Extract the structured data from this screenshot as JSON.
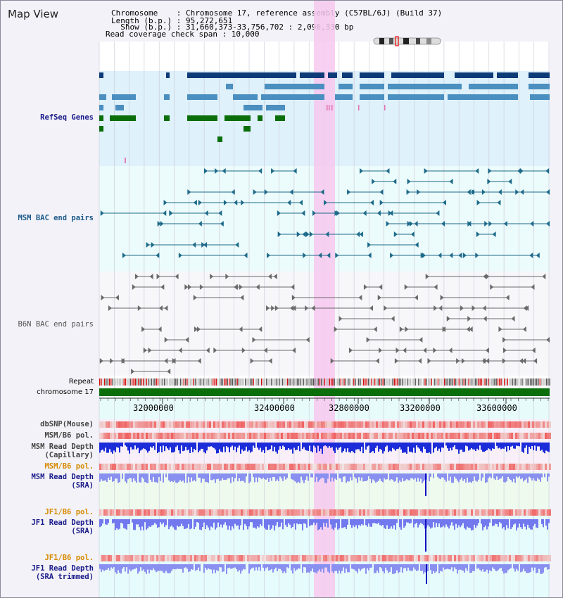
{
  "title": "Map View",
  "info": {
    "chromosome": "Chromosome    : Chromosome 17, reference assembly (C57BL/6J) (Build 37)",
    "length": "Length (b.p.) : 95,272,651",
    "show": "  Show (b.p.) : 31,660,373-33,756,702 : 2,096,330 bp",
    "coverage": "Read coverage check span : 10,000"
  },
  "tracks": {
    "refseq": "RefSeq Genes",
    "msm_bac": "MSM BAC end pairs",
    "b6n_bac": "B6N BAC end pairs",
    "repeat": "Repeat",
    "chromosome": "chromosome 17",
    "dbsnp": "dbSNP(Mouse)",
    "msm_b6_pol_1": "MSM/B6 pol.",
    "msm_depth_cap_1": "MSM Read Depth",
    "msm_depth_cap_2": "(Capillary)",
    "msm_b6_pol_2": "MSM/B6 pol.",
    "msm_depth_sra_1": "MSM Read Depth",
    "msm_depth_sra_2": "(SRA)",
    "jf1_b6_pol_1": "JF1/B6 pol.",
    "jf1_depth_sra_1": "JF1 Read Depth",
    "jf1_depth_sra_2": "(SRA)",
    "jf1_b6_pol_2": "JF1/B6 pol.",
    "jf1_depth_trim_1": "JF1 Read Depth",
    "jf1_depth_trim_2": "(SRA trimmed)"
  },
  "axis": {
    "ticks": [
      "32000000",
      "32400000",
      "32800000",
      "33200000",
      "33600000"
    ]
  },
  "colors": {
    "refseq_dark": "#0d3b78",
    "refseq_mid": "#4a8fc0",
    "refseq_green": "#0a6e0a",
    "bac_msm": "#1d6a8a",
    "bac_b6n": "#6a6a6a",
    "highlight": "#f7c8ee",
    "depth_blue": "#1c2cd8",
    "depth_light": "#8a90f0",
    "label_navy": "#1a1a8a",
    "label_orange": "#d88a00"
  }
}
